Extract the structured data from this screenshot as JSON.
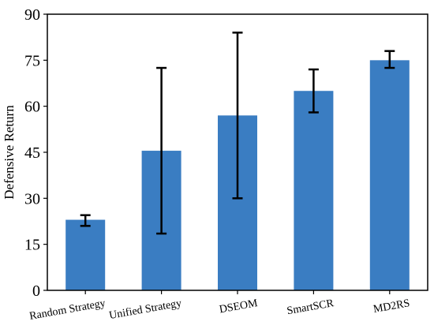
{
  "chart_data": {
    "type": "bar",
    "categories": [
      "Random Strategy",
      "Unified Strategy",
      "DSEOM",
      "SmartSCR",
      "MD2RS"
    ],
    "values": [
      23,
      45.5,
      57,
      65,
      75
    ],
    "error_low": [
      21,
      18.5,
      30,
      58,
      72.5
    ],
    "error_high": [
      24.5,
      72.5,
      84,
      72,
      78
    ],
    "title": "",
    "xlabel": "",
    "ylabel": "Defensive Return",
    "ylim": [
      0,
      90
    ],
    "yticks": [
      0,
      15,
      30,
      45,
      60,
      75,
      90
    ],
    "bar_color": "#3a7dc2",
    "error_color": "#000000",
    "grid": false,
    "legend": "none"
  }
}
